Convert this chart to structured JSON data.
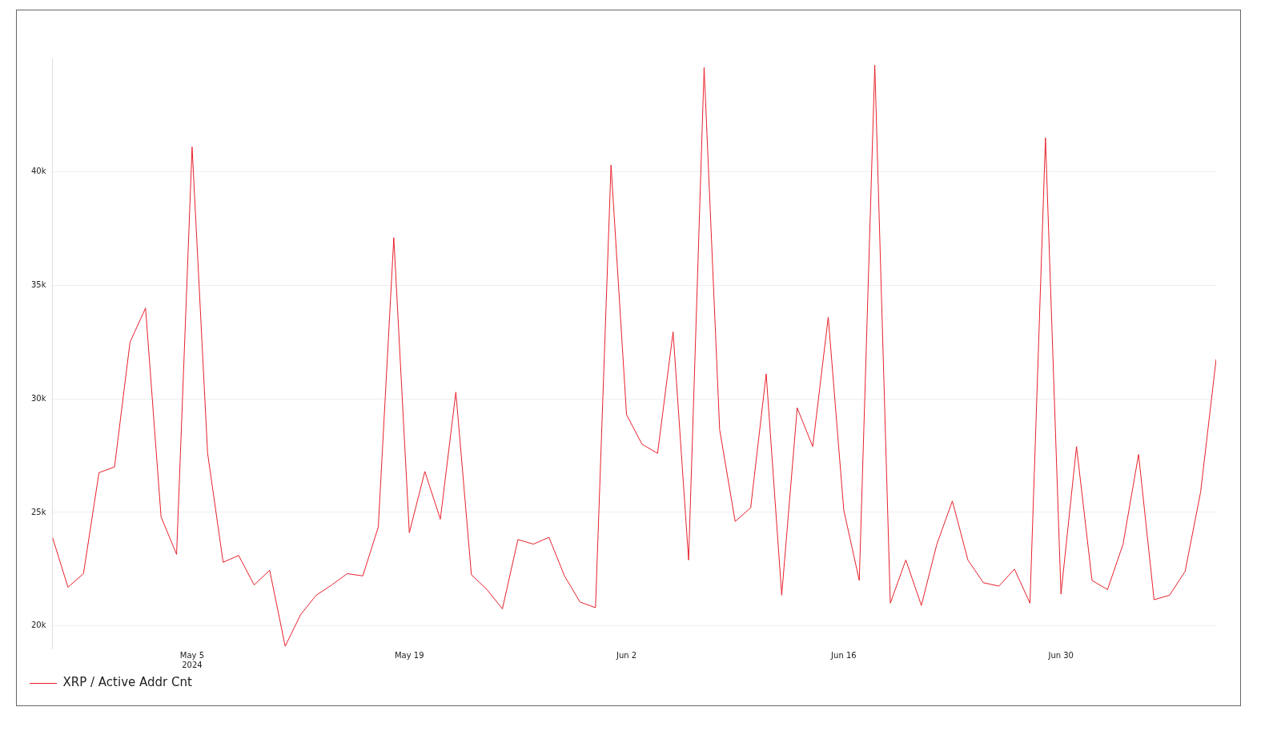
{
  "chart_data": {
    "type": "line",
    "x": [
      "2024-04-26",
      "2024-04-27",
      "2024-04-28",
      "2024-04-29",
      "2024-04-30",
      "2024-05-01",
      "2024-05-02",
      "2024-05-03",
      "2024-05-04",
      "2024-05-05",
      "2024-05-06",
      "2024-05-07",
      "2024-05-08",
      "2024-05-09",
      "2024-05-10",
      "2024-05-11",
      "2024-05-12",
      "2024-05-13",
      "2024-05-14",
      "2024-05-15",
      "2024-05-16",
      "2024-05-17",
      "2024-05-18",
      "2024-05-19",
      "2024-05-20",
      "2024-05-21",
      "2024-05-22",
      "2024-05-23",
      "2024-05-24",
      "2024-05-25",
      "2024-05-26",
      "2024-05-27",
      "2024-05-28",
      "2024-05-29",
      "2024-05-30",
      "2024-05-31",
      "2024-06-01",
      "2024-06-02",
      "2024-06-03",
      "2024-06-04",
      "2024-06-05",
      "2024-06-06",
      "2024-06-07",
      "2024-06-08",
      "2024-06-09",
      "2024-06-10",
      "2024-06-11",
      "2024-06-12",
      "2024-06-13",
      "2024-06-14",
      "2024-06-15",
      "2024-06-16",
      "2024-06-17",
      "2024-06-18",
      "2024-06-19",
      "2024-06-20",
      "2024-06-21",
      "2024-06-22",
      "2024-06-23",
      "2024-06-24",
      "2024-06-25",
      "2024-06-26",
      "2024-06-27",
      "2024-06-28",
      "2024-06-29",
      "2024-06-30",
      "2024-07-01",
      "2024-07-02",
      "2024-07-03",
      "2024-07-04",
      "2024-07-05",
      "2024-07-06",
      "2024-07-07",
      "2024-07-08",
      "2024-07-09",
      "2024-07-10"
    ],
    "series": [
      {
        "name": "XRP / Active Addr Cnt",
        "color": "#e8202a",
        "values": [
          23900,
          21700,
          22300,
          26750,
          27000,
          32500,
          34000,
          24800,
          23150,
          41100,
          27600,
          22800,
          23100,
          21800,
          22450,
          19100,
          20500,
          21350,
          21800,
          22300,
          22200,
          24350,
          37100,
          24100,
          26800,
          24700,
          30300,
          22250,
          21600,
          20750,
          23800,
          23600,
          23900,
          22200,
          21050,
          20800,
          40300,
          29300,
          28000,
          27600,
          32950,
          22900,
          44600,
          28650,
          24600,
          25200,
          31100,
          21350,
          29600,
          27900,
          33600,
          25100,
          22000,
          44700,
          21000,
          22900,
          20900,
          23600,
          25500,
          22900,
          21900,
          21750,
          22500,
          21000,
          41500,
          21400,
          27900,
          22000,
          21600,
          23600,
          27550,
          21150,
          21350,
          22400,
          25900,
          31750
        ]
      }
    ],
    "xlim": [
      "2024-04-26",
      "2024-07-10"
    ],
    "xticks": [
      {
        "value": "2024-05-05",
        "label": "May 5\n2024"
      },
      {
        "value": "2024-05-19",
        "label": "May 19"
      },
      {
        "value": "2024-06-02",
        "label": "Jun 2"
      },
      {
        "value": "2024-06-16",
        "label": "Jun 16"
      },
      {
        "value": "2024-06-30",
        "label": "Jun 30"
      }
    ],
    "ylim": [
      19000,
      45000
    ],
    "yticks": [
      {
        "value": 20000,
        "label": "20k"
      },
      {
        "value": 25000,
        "label": "25k"
      },
      {
        "value": 30000,
        "label": "30k"
      },
      {
        "value": 35000,
        "label": "35k"
      },
      {
        "value": 40000,
        "label": "40k"
      }
    ],
    "grid": "y",
    "legend": "bottom left",
    "marker": "none",
    "line_style": "solid"
  }
}
